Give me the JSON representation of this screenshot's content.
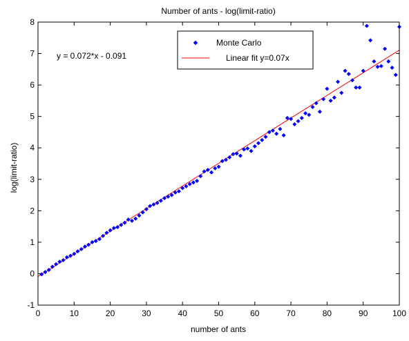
{
  "chart_data": {
    "type": "scatter",
    "title": "Number of ants - log(limit-ratio)",
    "xlabel": "number of ants",
    "ylabel": "log(limit-ratio)",
    "xlim": [
      0,
      100
    ],
    "ylim": [
      -1,
      8
    ],
    "xticks": [
      "0",
      "10",
      "20",
      "30",
      "40",
      "50",
      "60",
      "70",
      "80",
      "90",
      "100"
    ],
    "yticks": [
      "-1",
      "0",
      "1",
      "2",
      "3",
      "4",
      "5",
      "6",
      "7",
      "8"
    ],
    "grid": false,
    "legend_position": "top-center",
    "annotation": "y = 0.072*x - 0.091",
    "series": [
      {
        "name": "Monte Carlo",
        "kind": "scatter",
        "color": "#0000ff",
        "x": [
          1,
          2,
          3,
          4,
          5,
          6,
          7,
          8,
          9,
          10,
          11,
          12,
          13,
          14,
          15,
          16,
          17,
          18,
          19,
          20,
          21,
          22,
          23,
          24,
          25,
          26,
          27,
          28,
          29,
          30,
          31,
          32,
          33,
          34,
          35,
          36,
          37,
          38,
          39,
          40,
          41,
          42,
          43,
          44,
          45,
          46,
          47,
          48,
          49,
          50,
          51,
          52,
          53,
          54,
          55,
          56,
          57,
          58,
          59,
          60,
          61,
          62,
          63,
          64,
          65,
          66,
          67,
          68,
          69,
          70,
          71,
          72,
          73,
          74,
          75,
          76,
          77,
          78,
          79,
          80,
          81,
          82,
          83,
          84,
          85,
          86,
          87,
          88,
          89,
          90,
          91,
          92,
          93,
          94,
          95,
          96,
          97,
          98,
          99,
          100
        ],
        "y": [
          -0.02,
          0.05,
          0.12,
          0.22,
          0.3,
          0.38,
          0.43,
          0.52,
          0.57,
          0.63,
          0.71,
          0.78,
          0.86,
          0.92,
          1.0,
          1.04,
          1.1,
          1.2,
          1.3,
          1.38,
          1.45,
          1.48,
          1.55,
          1.62,
          1.72,
          1.68,
          1.75,
          1.85,
          1.95,
          2.05,
          2.15,
          2.2,
          2.25,
          2.32,
          2.4,
          2.45,
          2.5,
          2.58,
          2.62,
          2.72,
          2.78,
          2.85,
          2.9,
          2.95,
          3.1,
          3.25,
          3.3,
          3.22,
          3.35,
          3.4,
          3.58,
          3.62,
          3.7,
          3.8,
          3.82,
          3.75,
          3.95,
          3.98,
          3.9,
          4.05,
          4.15,
          4.25,
          4.35,
          4.5,
          4.55,
          4.45,
          4.6,
          4.4,
          4.95,
          4.92,
          4.75,
          4.85,
          4.95,
          5.1,
          5.05,
          5.3,
          5.42,
          5.15,
          5.55,
          5.88,
          5.5,
          5.6,
          6.1,
          5.75,
          6.45,
          6.35,
          6.15,
          5.92,
          5.92,
          6.45,
          7.88,
          7.42,
          6.75,
          6.58,
          6.6,
          7.15,
          6.75,
          6.55,
          6.32,
          7.85
        ]
      },
      {
        "name": "Linear fit y=0.07x",
        "kind": "line",
        "color": "#ff0000",
        "x": [
          0,
          100
        ],
        "y": [
          -0.091,
          7.109
        ]
      }
    ]
  }
}
